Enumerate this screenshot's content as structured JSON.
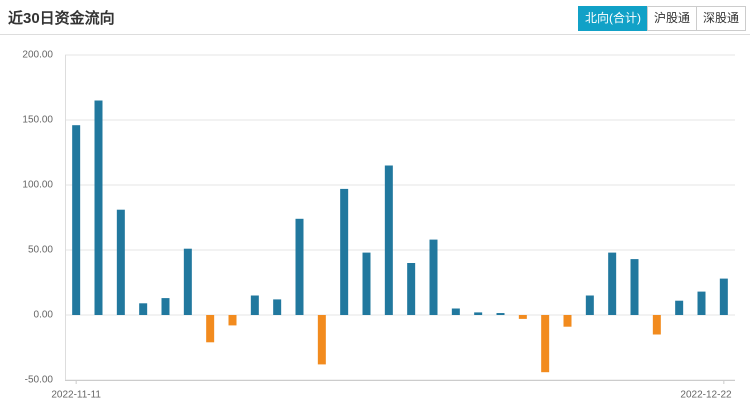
{
  "header": {
    "title": "近30日资金流向",
    "tabs": [
      "北向(合计)",
      "沪股通",
      "深股通"
    ],
    "active_tab": 0
  },
  "chart_data": {
    "type": "bar",
    "categories": [
      "2022-11-11",
      null,
      null,
      null,
      null,
      null,
      null,
      null,
      null,
      null,
      null,
      null,
      null,
      null,
      null,
      null,
      null,
      null,
      null,
      null,
      null,
      null,
      null,
      null,
      null,
      null,
      null,
      null,
      null,
      "2022-12-22"
    ],
    "values": [
      146,
      165,
      81,
      9,
      13,
      51,
      -21,
      -8,
      15,
      12,
      74,
      -38,
      97,
      48,
      115,
      40,
      58,
      5,
      2,
      1.5,
      -3,
      -44,
      -9,
      15,
      48,
      43,
      -15,
      11,
      18,
      28
    ],
    "positive_color": "#21789e",
    "negative_color": "#f28b1e",
    "ylim": [
      -50,
      200
    ],
    "yticks": [
      {
        "value": -50,
        "label": "-50.00"
      },
      {
        "value": 0,
        "label": "0.00"
      },
      {
        "value": 50,
        "label": "50.00"
      },
      {
        "value": 100,
        "label": "100.00"
      },
      {
        "value": 150,
        "label": "150.00"
      },
      {
        "value": 200,
        "label": "200.00"
      }
    ],
    "grid": true
  }
}
